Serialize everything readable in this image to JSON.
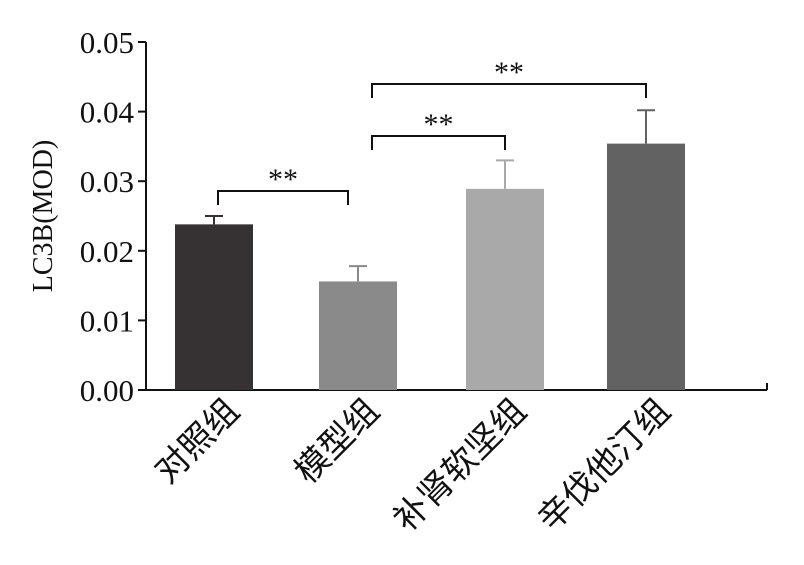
{
  "chart_data": {
    "type": "bar",
    "title": "",
    "xlabel": "",
    "ylabel": "LC3B(MOD)",
    "ylim": [
      0,
      0.05
    ],
    "yticks": [
      "0.00",
      "0.01",
      "0.02",
      "0.03",
      "0.04",
      "0.05"
    ],
    "grid": false,
    "categories": [
      "对照组",
      "模型组",
      "补肾软坚组",
      "辛伐他汀组"
    ],
    "values": [
      0.0238,
      0.0156,
      0.0289,
      0.0354
    ],
    "errors": [
      0.0012,
      0.0022,
      0.0041,
      0.0048
    ],
    "bar_colors": [
      "#363133",
      "#8a8a8a",
      "#a9a9a9",
      "#626262"
    ],
    "significance": [
      {
        "from": 0,
        "to": 1,
        "label": "**"
      },
      {
        "from": 1,
        "to": 2,
        "label": "**"
      },
      {
        "from": 1,
        "to": 3,
        "label": "**"
      }
    ]
  }
}
